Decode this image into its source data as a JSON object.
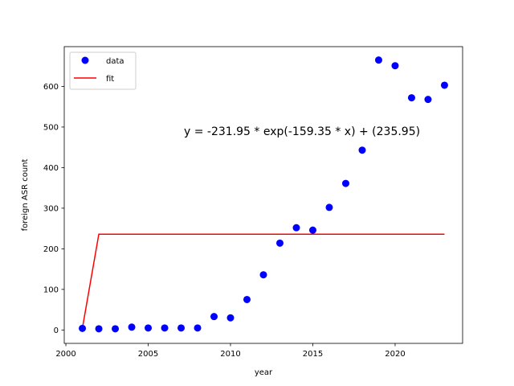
{
  "chart_data": {
    "type": "scatter",
    "xlabel": "year",
    "ylabel": "foreign ASR count",
    "xlim": [
      1999.9,
      2024.1
    ],
    "ylim": [
      -33,
      698
    ],
    "xticks": [
      2000,
      2005,
      2010,
      2015,
      2020
    ],
    "yticks": [
      0,
      100,
      200,
      300,
      400,
      500,
      600
    ],
    "legend": {
      "position": "top-left",
      "entries": [
        "data",
        "fit"
      ]
    },
    "annotation": "y = -231.95 * exp(-159.35 * x) + (235.95)",
    "series": [
      {
        "name": "data",
        "kind": "scatter",
        "color": "#0000ff",
        "x": [
          2001,
          2002,
          2003,
          2004,
          2005,
          2006,
          2007,
          2008,
          2009,
          2010,
          2011,
          2012,
          2013,
          2014,
          2015,
          2016,
          2017,
          2018,
          2019,
          2020,
          2021,
          2022,
          2023
        ],
        "y": [
          4,
          3,
          3,
          7,
          5,
          5,
          5,
          5,
          33,
          30,
          75,
          136,
          214,
          252,
          246,
          302,
          361,
          443,
          665,
          651,
          572,
          568,
          603
        ]
      },
      {
        "name": "fit",
        "kind": "line",
        "color": "#ff0000",
        "x": [
          2001,
          2002,
          2023
        ],
        "y": [
          4,
          235.95,
          235.95
        ]
      }
    ]
  }
}
